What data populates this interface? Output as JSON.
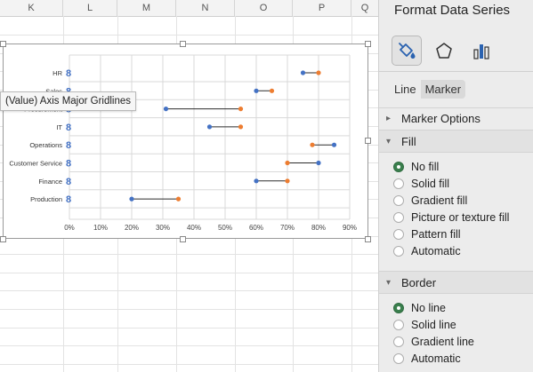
{
  "sheet": {
    "columns": [
      "K",
      "L",
      "M",
      "N",
      "O",
      "P",
      "Q"
    ]
  },
  "tooltip": {
    "text": "(Value) Axis Major Gridlines"
  },
  "chart_data": {
    "type": "scatter",
    "categories": [
      "HR",
      "Sales",
      "Procurement",
      "IT",
      "Operations",
      "Customer Service",
      "Finance",
      "Production"
    ],
    "category_marker_glyph": "8",
    "series": [
      {
        "color": "#4472c4",
        "values": [
          0.75,
          0.6,
          0.31,
          0.45,
          0.85,
          0.8,
          0.6,
          0.2
        ]
      },
      {
        "color": "#ed7d31",
        "values": [
          0.8,
          0.65,
          0.55,
          0.55,
          0.78,
          0.7,
          0.7,
          0.35
        ]
      }
    ],
    "connector_color": "#2b2b2b",
    "x_ticks": [
      "0%",
      "10%",
      "20%",
      "30%",
      "40%",
      "50%",
      "60%",
      "70%",
      "80%",
      "90%"
    ],
    "xlim": [
      0,
      0.9
    ],
    "grid": true
  },
  "pane": {
    "title": "Format Data Series",
    "icons": [
      "fill-line-icon",
      "effects-pentagon-icon",
      "series-options-icon"
    ],
    "tabs": [
      "Line",
      "Marker"
    ],
    "sections": {
      "marker_options": "Marker Options",
      "fill": "Fill",
      "border": "Border"
    },
    "fill_options": [
      "No fill",
      "Solid fill",
      "Gradient fill",
      "Picture or texture fill",
      "Pattern fill",
      "Automatic"
    ],
    "border_options": [
      "No line",
      "Solid line",
      "Gradient line",
      "Automatic"
    ],
    "fill_selected": "No fill",
    "border_selected": "No line"
  }
}
